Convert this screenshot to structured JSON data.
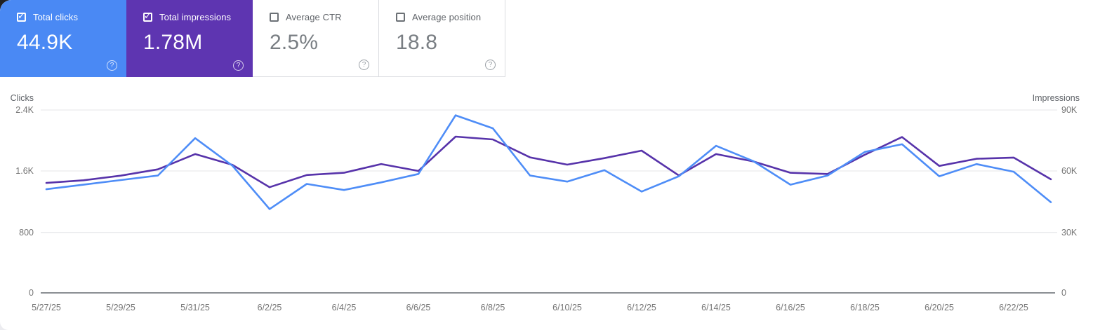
{
  "cards": [
    {
      "label": "Total clicks",
      "value": "44.9K",
      "checked": true,
      "color": "#4a89f4"
    },
    {
      "label": "Total impressions",
      "value": "1.78M",
      "checked": true,
      "color": "#5e35b1"
    },
    {
      "label": "Average CTR",
      "value": "2.5%",
      "checked": false,
      "color": "#ffffff"
    },
    {
      "label": "Average position",
      "value": "18.8",
      "checked": false,
      "color": "#ffffff"
    }
  ],
  "help_icon_glyph": "?",
  "colors": {
    "clicks_accent": "#4a89f4",
    "impressions_accent": "#5e35b1",
    "clicks_line": "#4e8df7",
    "impressions_line": "#5733aa",
    "gridline": "#e9eaec",
    "axis_line": "#8b8f94",
    "tick_text": "#757575",
    "axis_title_text": "#5f6368"
  },
  "chart_data": {
    "type": "line",
    "x": [
      "5/27/25",
      "5/28/25",
      "5/29/25",
      "5/30/25",
      "5/31/25",
      "6/1/25",
      "6/2/25",
      "6/3/25",
      "6/4/25",
      "6/5/25",
      "6/6/25",
      "6/7/25",
      "6/8/25",
      "6/9/25",
      "6/10/25",
      "6/11/25",
      "6/12/25",
      "6/13/25",
      "6/14/25",
      "6/15/25",
      "6/16/25",
      "6/17/25",
      "6/18/25",
      "6/19/25",
      "6/20/25",
      "6/21/25",
      "6/22/25",
      "6/23/25"
    ],
    "x_tick_labels": [
      "5/27/25",
      "5/29/25",
      "5/31/25",
      "6/2/25",
      "6/4/25",
      "6/6/25",
      "6/8/25",
      "6/10/25",
      "6/12/25",
      "6/14/25",
      "6/16/25",
      "6/18/25",
      "6/20/25",
      "6/22/25"
    ],
    "series": [
      {
        "name": "Clicks",
        "axis": "left",
        "color": "#4e8df7",
        "values": [
          1360,
          1420,
          1480,
          1540,
          2030,
          1670,
          1100,
          1430,
          1350,
          1450,
          1560,
          2330,
          2160,
          1540,
          1460,
          1610,
          1330,
          1530,
          1930,
          1730,
          1420,
          1540,
          1850,
          1950,
          1530,
          1690,
          1590,
          1190
        ]
      },
      {
        "name": "Impressions",
        "axis": "right",
        "color": "#5733aa",
        "values": [
          54100,
          55400,
          57700,
          60800,
          68300,
          63000,
          52000,
          58000,
          59100,
          63400,
          60000,
          76900,
          75500,
          66700,
          63100,
          66300,
          70000,
          57800,
          68300,
          64700,
          59100,
          58500,
          68000,
          76700,
          62500,
          66000,
          66600,
          55900
        ]
      }
    ],
    "left_axis": {
      "title": "Clicks",
      "max": 2400,
      "ticks": [
        "2.4K",
        "1.6K",
        "800",
        "0"
      ]
    },
    "right_axis": {
      "title": "Impressions",
      "max": 90000,
      "ticks": [
        "90K",
        "60K",
        "30K",
        "0"
      ]
    },
    "grid": "horizontal",
    "legend_position": "none"
  }
}
